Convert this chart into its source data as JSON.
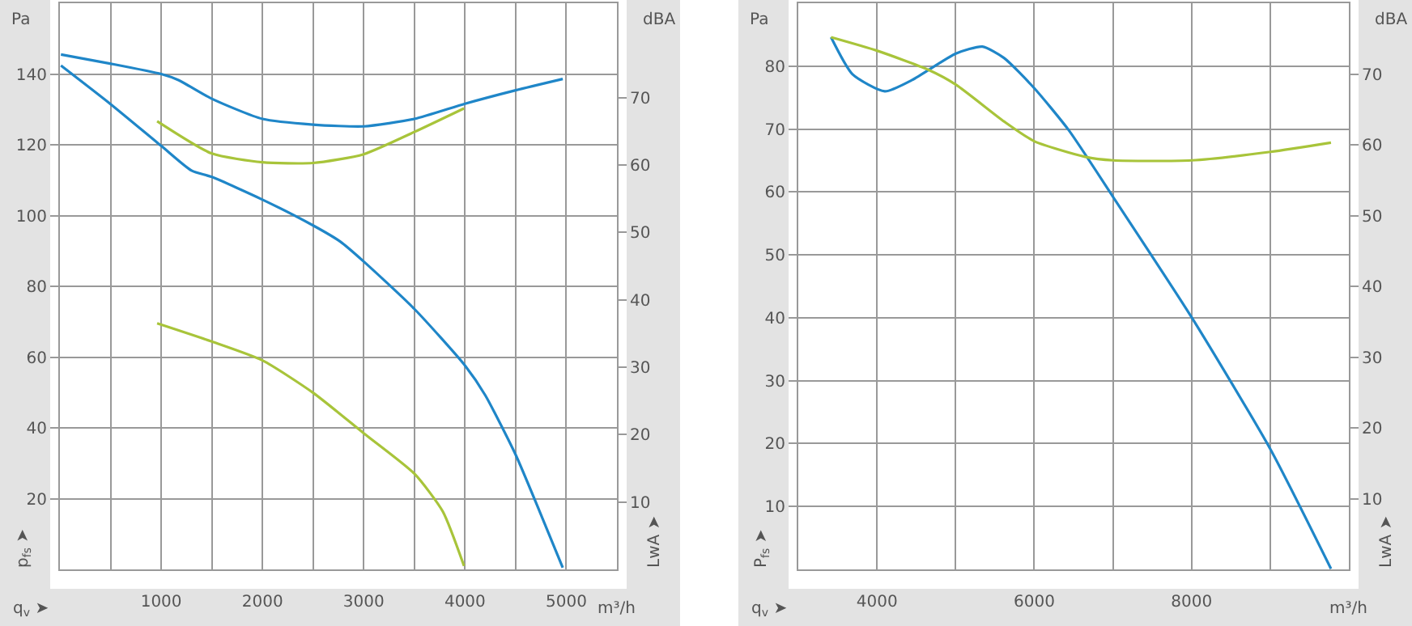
{
  "chart_data": [
    {
      "type": "line",
      "xlabel": "q$_{v}$ ➤",
      "ylabel": "p$_{fs}$ ➤",
      "y2label": "LwA ➤",
      "annotations": [
        "Pa",
        "dBA",
        "m³/h"
      ],
      "grid": true,
      "xlim": [
        0,
        5500
      ],
      "ylim": [
        0,
        160
      ],
      "y2lim": [
        0,
        84
      ],
      "xticks": [
        {
          "value": 500,
          "label": null
        },
        1000,
        {
          "value": 1500,
          "label": null
        },
        2000,
        {
          "value": 2500,
          "label": null
        },
        3000,
        {
          "value": 3500,
          "label": null
        },
        4000,
        {
          "value": 4500,
          "label": null
        },
        5000
      ],
      "yticks": [
        20,
        40,
        60,
        80,
        100,
        120,
        140
      ],
      "y2ticks": [
        10,
        20,
        30,
        40,
        50,
        60,
        70
      ],
      "series": [
        {
          "color": "#1f86c8",
          "x": [
            10,
            505,
            1000,
            1170,
            1500,
            2000,
            2500,
            3000,
            3500,
            4000,
            4500,
            4965
          ],
          "values": [
            145.5,
            142.9,
            140,
            138.3,
            133,
            127.3,
            125.7,
            125.2,
            127.3,
            131.6,
            135.4,
            138.6
          ]
        },
        {
          "color": "#1f86c8",
          "x": [
            10,
            500,
            1000,
            1300,
            1500,
            2000,
            2500,
            2770,
            3000,
            3500,
            4000,
            4200,
            4500,
            4735,
            4965
          ],
          "values": [
            142.4,
            131.5,
            119.7,
            112.7,
            110.9,
            104.5,
            97.2,
            92.6,
            87,
            73.6,
            57.6,
            49.2,
            32.4,
            16.5,
            0.5
          ]
        },
        {
          "color": "#a8c43a",
          "axis": "y2",
          "x": [
            960,
            1500,
            2000,
            2500,
            3000,
            3500,
            3990
          ],
          "values": [
            66.5,
            61.7,
            60.4,
            60.3,
            61.6,
            64.9,
            68.4
          ]
        },
        {
          "color": "#a8c43a",
          "axis": "y2",
          "x": [
            960,
            1500,
            2000,
            2500,
            3000,
            3500,
            3780,
            3990
          ],
          "values": [
            36.5,
            33.8,
            31.0,
            26.2,
            20.2,
            14.2,
            8.6,
            0.5
          ]
        }
      ]
    },
    {
      "type": "line",
      "xlabel": "q$_{v}$ ➤",
      "ylabel": "P$_{fs}$ ➤",
      "y2label": "LwA ➤",
      "annotations": [
        "Pa",
        "dBA",
        "m³/h"
      ],
      "grid": true,
      "xlim": [
        3000,
        10000
      ],
      "ylim": [
        0,
        90
      ],
      "y2lim": [
        0,
        80
      ],
      "xticks": [
        4000,
        {
          "value": 5000,
          "label": null
        },
        6000,
        {
          "value": 7000,
          "label": null
        },
        8000,
        {
          "value": 9000,
          "label": null
        }
      ],
      "yticks": [
        10,
        20,
        30,
        40,
        50,
        60,
        70,
        80
      ],
      "y2ticks": [
        10,
        20,
        30,
        40,
        50,
        60,
        70
      ],
      "series": [
        {
          "color": "#1f86c8",
          "x": [
            3416,
            3690,
            4100,
            4447,
            5003,
            5340,
            5615,
            6000,
            6440,
            7003,
            8000,
            9003,
            9773
          ],
          "values": [
            84.6,
            78.7,
            76,
            77.8,
            82,
            83.1,
            81.3,
            76.5,
            69.8,
            59.2,
            40.1,
            19.1,
            0.1
          ]
        },
        {
          "color": "#a8c43a",
          "axis": "y2",
          "x": [
            3416,
            4000,
            4653,
            5003,
            5615,
            6000,
            6646,
            7003,
            8000,
            9003,
            9773
          ],
          "values": [
            75.2,
            73.3,
            70.6,
            68.5,
            63.3,
            60.5,
            58.3,
            57.8,
            57.8,
            59,
            60.3
          ]
        }
      ]
    }
  ]
}
